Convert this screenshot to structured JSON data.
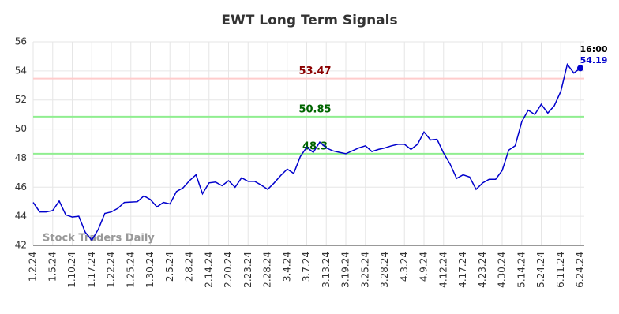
{
  "chart_data": {
    "type": "line",
    "title": "EWT Long Term Signals",
    "categories": [
      "1.2.24",
      null,
      null,
      "1.5.24",
      null,
      null,
      "1.10.24",
      null,
      null,
      "1.17.24",
      null,
      null,
      "1.22.24",
      null,
      null,
      "1.25.24",
      null,
      null,
      "1.30.24",
      null,
      null,
      "2.5.24",
      null,
      null,
      "2.8.24",
      null,
      null,
      "2.14.24",
      null,
      null,
      "2.20.24",
      null,
      null,
      "2.23.24",
      null,
      null,
      "2.28.24",
      null,
      null,
      "3.4.24",
      null,
      null,
      "3.7.24",
      null,
      null,
      "3.13.24",
      null,
      null,
      "3.19.24",
      null,
      null,
      "3.25.24",
      null,
      null,
      "3.28.24",
      null,
      null,
      "4.3.24",
      null,
      null,
      "4.9.24",
      null,
      null,
      "4.12.24",
      null,
      null,
      "4.17.24",
      null,
      null,
      "4.23.24",
      null,
      null,
      "4.30.24",
      null,
      null,
      "5.14.24",
      null,
      null,
      "5.24.24",
      null,
      null,
      "6.11.24",
      null,
      null,
      "6.24.24"
    ],
    "series": [
      {
        "color": "#0000cc",
        "values": [
          44.95,
          44.3,
          44.3,
          44.4,
          45.05,
          44.1,
          43.95,
          44.0,
          42.9,
          42.35,
          43.1,
          44.2,
          44.3,
          44.55,
          44.95,
          44.98,
          45.0,
          45.4,
          45.15,
          44.65,
          44.95,
          44.85,
          45.7,
          45.95,
          46.45,
          46.85,
          45.55,
          46.3,
          46.35,
          46.1,
          46.45,
          46.0,
          46.65,
          46.4,
          46.4,
          46.15,
          45.85,
          46.3,
          46.8,
          47.25,
          46.95,
          48.1,
          48.75,
          48.4,
          49.1,
          48.7,
          48.5,
          48.4,
          48.3,
          48.5,
          48.7,
          48.85,
          48.45,
          48.6,
          48.7,
          48.85,
          48.95,
          48.95,
          48.6,
          48.95,
          49.8,
          49.25,
          49.3,
          48.35,
          47.6,
          46.6,
          46.85,
          46.7,
          45.85,
          46.3,
          46.55,
          46.55,
          47.15,
          48.55,
          48.85,
          50.5,
          51.3,
          51.0,
          51.7,
          51.1,
          51.6,
          52.6,
          54.45,
          53.85,
          54.19
        ]
      }
    ],
    "last_time": "16:00",
    "hlines": [
      {
        "value": 53.47,
        "color": "#ffcccc",
        "label_color": "#8b0000"
      },
      {
        "value": 50.85,
        "color": "#90ee90",
        "label_color": "#006400"
      },
      {
        "value": 48.3,
        "color": "#90ee90",
        "label_color": "#006400"
      }
    ],
    "watermark": "Stock Traders Daily",
    "ylim": [
      42,
      56
    ],
    "yticks": [
      42,
      44,
      46,
      48,
      50,
      52,
      54,
      56
    ],
    "grid": true
  }
}
